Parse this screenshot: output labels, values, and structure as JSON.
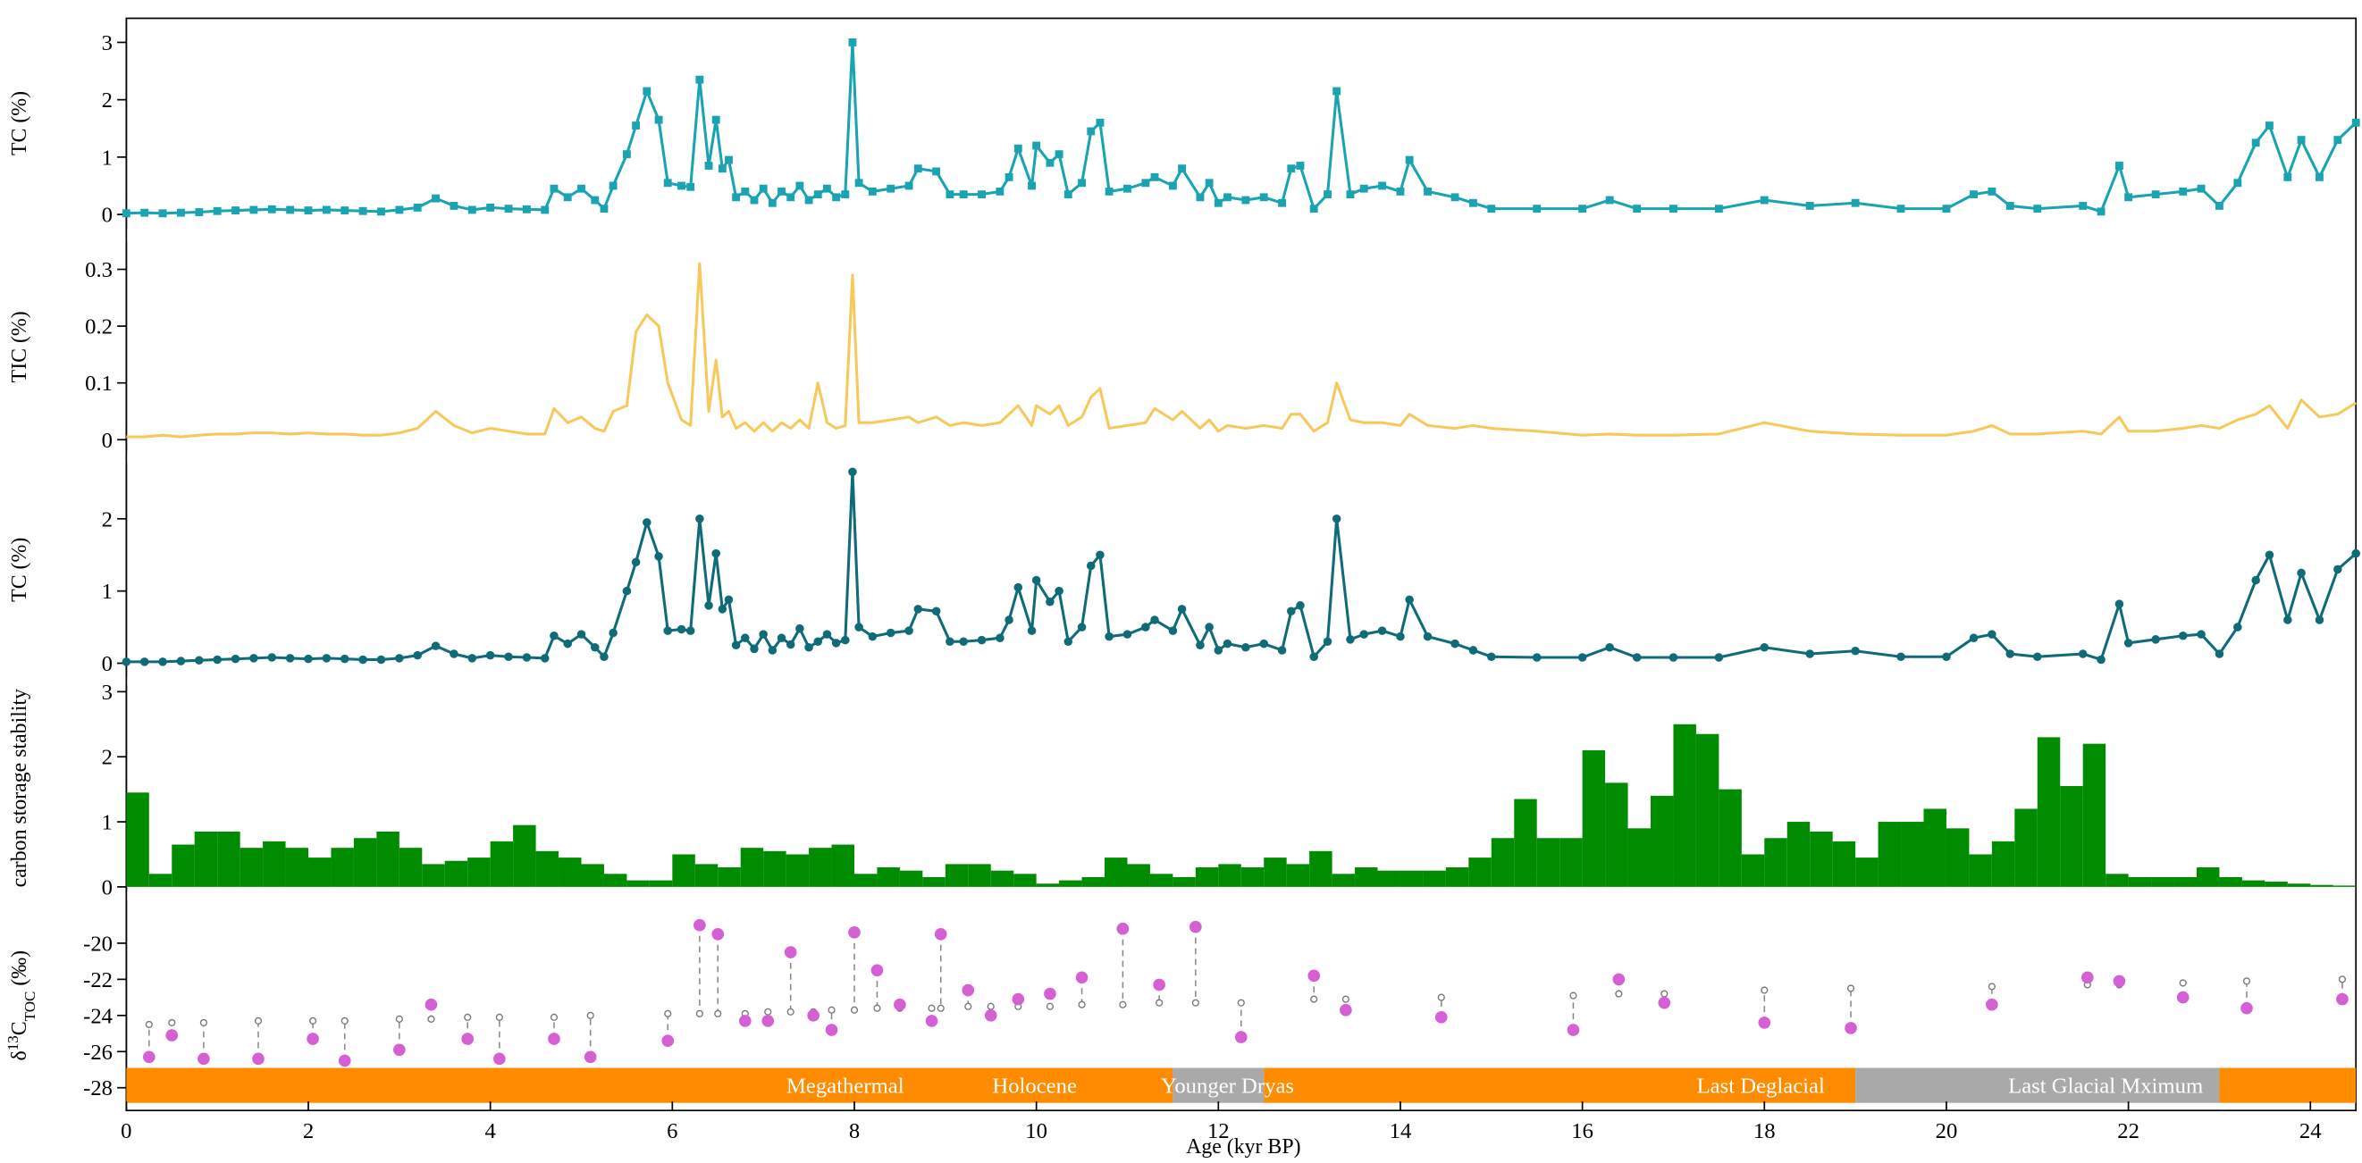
{
  "chart_data": [
    {
      "type": "line",
      "ylabel": "TC (%)",
      "color": "#1aa3b3",
      "marker": "square",
      "ylim": [
        -0.24,
        3.42
      ],
      "yticks": [
        0,
        1,
        2,
        3
      ],
      "x": [
        0,
        0.2,
        0.4,
        0.6,
        0.8,
        1.0,
        1.2,
        1.4,
        1.6,
        1.8,
        2.0,
        2.2,
        2.4,
        2.6,
        2.8,
        3.0,
        3.2,
        3.4,
        3.6,
        3.8,
        4.0,
        4.2,
        4.4,
        4.6,
        4.7,
        4.85,
        5.0,
        5.15,
        5.25,
        5.35,
        5.5,
        5.6,
        5.72,
        5.85,
        5.95,
        6.1,
        6.2,
        6.3,
        6.4,
        6.48,
        6.55,
        6.62,
        6.7,
        6.8,
        6.9,
        7.0,
        7.1,
        7.2,
        7.3,
        7.4,
        7.5,
        7.6,
        7.7,
        7.8,
        7.9,
        7.98,
        8.05,
        8.2,
        8.4,
        8.6,
        8.7,
        8.9,
        9.05,
        9.2,
        9.4,
        9.6,
        9.7,
        9.8,
        9.95,
        10.0,
        10.15,
        10.25,
        10.35,
        10.5,
        10.6,
        10.7,
        10.8,
        11.0,
        11.2,
        11.3,
        11.5,
        11.6,
        11.8,
        11.9,
        12.0,
        12.1,
        12.3,
        12.5,
        12.7,
        12.8,
        12.9,
        13.05,
        13.2,
        13.3,
        13.45,
        13.6,
        13.8,
        14.0,
        14.1,
        14.3,
        14.6,
        14.8,
        15.0,
        15.5,
        16.0,
        16.3,
        16.6,
        17.0,
        17.5,
        18.0,
        18.5,
        19.0,
        19.5,
        20.0,
        20.3,
        20.5,
        20.7,
        21.0,
        21.5,
        21.7,
        21.9,
        22.0,
        22.3,
        22.6,
        22.8,
        23.0,
        23.2,
        23.4,
        23.55,
        23.75,
        23.9,
        24.1,
        24.3,
        24.5
      ],
      "values": [
        0.02,
        0.03,
        0.02,
        0.03,
        0.04,
        0.06,
        0.07,
        0.08,
        0.09,
        0.08,
        0.07,
        0.08,
        0.07,
        0.06,
        0.05,
        0.08,
        0.12,
        0.28,
        0.15,
        0.08,
        0.12,
        0.1,
        0.09,
        0.08,
        0.45,
        0.3,
        0.45,
        0.25,
        0.1,
        0.5,
        1.05,
        1.55,
        2.15,
        1.65,
        0.55,
        0.5,
        0.48,
        2.35,
        0.85,
        1.65,
        0.8,
        0.95,
        0.3,
        0.4,
        0.25,
        0.45,
        0.2,
        0.4,
        0.3,
        0.5,
        0.25,
        0.35,
        0.45,
        0.3,
        0.35,
        3.0,
        0.55,
        0.4,
        0.45,
        0.5,
        0.8,
        0.75,
        0.35,
        0.35,
        0.35,
        0.4,
        0.65,
        1.15,
        0.5,
        1.2,
        0.9,
        1.05,
        0.35,
        0.55,
        1.45,
        1.6,
        0.4,
        0.45,
        0.55,
        0.65,
        0.5,
        0.8,
        0.3,
        0.55,
        0.2,
        0.3,
        0.25,
        0.3,
        0.2,
        0.8,
        0.85,
        0.1,
        0.35,
        2.15,
        0.35,
        0.45,
        0.5,
        0.4,
        0.95,
        0.4,
        0.3,
        0.2,
        0.1,
        0.1,
        0.1,
        0.25,
        0.1,
        0.1,
        0.1,
        0.25,
        0.15,
        0.2,
        0.1,
        0.1,
        0.35,
        0.4,
        0.15,
        0.1,
        0.15,
        0.05,
        0.85,
        0.3,
        0.35,
        0.4,
        0.45,
        0.15,
        0.55,
        1.25,
        1.55,
        0.65,
        1.3,
        0.65,
        1.3,
        1.6
      ]
    },
    {
      "type": "line",
      "ylabel": "TIC (%)",
      "color": "#f7c95c",
      "ylim": [
        -0.024,
        0.351
      ],
      "yticks": [
        0,
        0.1,
        0.2,
        0.3
      ],
      "x": [
        0,
        0.2,
        0.4,
        0.6,
        0.8,
        1.0,
        1.2,
        1.4,
        1.6,
        1.8,
        2.0,
        2.2,
        2.4,
        2.6,
        2.8,
        3.0,
        3.2,
        3.4,
        3.6,
        3.8,
        4.0,
        4.2,
        4.4,
        4.6,
        4.7,
        4.85,
        5.0,
        5.15,
        5.25,
        5.35,
        5.5,
        5.6,
        5.72,
        5.85,
        5.95,
        6.1,
        6.2,
        6.3,
        6.4,
        6.48,
        6.55,
        6.62,
        6.7,
        6.8,
        6.9,
        7.0,
        7.1,
        7.2,
        7.3,
        7.4,
        7.5,
        7.6,
        7.7,
        7.8,
        7.9,
        7.98,
        8.05,
        8.2,
        8.4,
        8.6,
        8.7,
        8.9,
        9.05,
        9.2,
        9.4,
        9.6,
        9.7,
        9.8,
        9.95,
        10.0,
        10.15,
        10.25,
        10.35,
        10.5,
        10.6,
        10.7,
        10.8,
        11.0,
        11.2,
        11.3,
        11.5,
        11.6,
        11.8,
        11.9,
        12.0,
        12.1,
        12.3,
        12.5,
        12.7,
        12.8,
        12.9,
        13.05,
        13.2,
        13.3,
        13.45,
        13.6,
        13.8,
        14.0,
        14.1,
        14.3,
        14.6,
        14.8,
        15.0,
        15.5,
        16.0,
        16.3,
        16.6,
        17.0,
        17.5,
        18.0,
        18.5,
        19.0,
        19.5,
        20.0,
        20.3,
        20.5,
        20.7,
        21.0,
        21.5,
        21.7,
        21.9,
        22.0,
        22.3,
        22.6,
        22.8,
        23.0,
        23.2,
        23.4,
        23.55,
        23.75,
        23.9,
        24.1,
        24.3,
        24.5
      ],
      "values": [
        0.005,
        0.005,
        0.008,
        0.005,
        0.008,
        0.01,
        0.01,
        0.012,
        0.012,
        0.01,
        0.012,
        0.01,
        0.01,
        0.008,
        0.008,
        0.012,
        0.02,
        0.05,
        0.025,
        0.012,
        0.02,
        0.015,
        0.01,
        0.01,
        0.055,
        0.03,
        0.04,
        0.02,
        0.015,
        0.05,
        0.06,
        0.19,
        0.22,
        0.2,
        0.1,
        0.035,
        0.025,
        0.31,
        0.05,
        0.14,
        0.04,
        0.05,
        0.02,
        0.03,
        0.015,
        0.03,
        0.015,
        0.03,
        0.02,
        0.035,
        0.02,
        0.1,
        0.03,
        0.02,
        0.025,
        0.29,
        0.03,
        0.03,
        0.035,
        0.04,
        0.03,
        0.04,
        0.025,
        0.03,
        0.025,
        0.03,
        0.045,
        0.06,
        0.025,
        0.06,
        0.045,
        0.06,
        0.025,
        0.04,
        0.075,
        0.09,
        0.02,
        0.025,
        0.03,
        0.055,
        0.035,
        0.05,
        0.02,
        0.035,
        0.015,
        0.025,
        0.02,
        0.025,
        0.02,
        0.045,
        0.045,
        0.015,
        0.03,
        0.1,
        0.035,
        0.03,
        0.03,
        0.025,
        0.045,
        0.025,
        0.02,
        0.025,
        0.02,
        0.015,
        0.008,
        0.01,
        0.008,
        0.008,
        0.01,
        0.03,
        0.015,
        0.01,
        0.008,
        0.008,
        0.015,
        0.025,
        0.01,
        0.01,
        0.015,
        0.01,
        0.04,
        0.015,
        0.015,
        0.02,
        0.025,
        0.02,
        0.035,
        0.045,
        0.06,
        0.02,
        0.07,
        0.04,
        0.045,
        0.065
      ]
    },
    {
      "type": "line",
      "ylabel": "TC (%)",
      "color": "#0e6b77",
      "marker": "circle",
      "ylim": [
        -0.19,
        2.78
      ],
      "yticks": [
        0,
        1,
        2
      ],
      "x": [
        0,
        0.2,
        0.4,
        0.6,
        0.8,
        1.0,
        1.2,
        1.4,
        1.6,
        1.8,
        2.0,
        2.2,
        2.4,
        2.6,
        2.8,
        3.0,
        3.2,
        3.4,
        3.6,
        3.8,
        4.0,
        4.2,
        4.4,
        4.6,
        4.7,
        4.85,
        5.0,
        5.15,
        5.25,
        5.35,
        5.5,
        5.6,
        5.72,
        5.85,
        5.95,
        6.1,
        6.2,
        6.3,
        6.4,
        6.48,
        6.55,
        6.62,
        6.7,
        6.8,
        6.9,
        7.0,
        7.1,
        7.2,
        7.3,
        7.4,
        7.5,
        7.6,
        7.7,
        7.8,
        7.9,
        7.98,
        8.05,
        8.2,
        8.4,
        8.6,
        8.7,
        8.9,
        9.05,
        9.2,
        9.4,
        9.6,
        9.7,
        9.8,
        9.95,
        10.0,
        10.15,
        10.25,
        10.35,
        10.5,
        10.6,
        10.7,
        10.8,
        11.0,
        11.2,
        11.3,
        11.5,
        11.6,
        11.8,
        11.9,
        12.0,
        12.1,
        12.3,
        12.5,
        12.7,
        12.8,
        12.9,
        13.05,
        13.2,
        13.3,
        13.45,
        13.6,
        13.8,
        14.0,
        14.1,
        14.3,
        14.6,
        14.8,
        15.0,
        15.5,
        16.0,
        16.3,
        16.6,
        17.0,
        17.5,
        18.0,
        18.5,
        19.0,
        19.5,
        20.0,
        20.3,
        20.5,
        20.7,
        21.0,
        21.5,
        21.7,
        21.9,
        22.0,
        22.3,
        22.6,
        22.8,
        23.0,
        23.2,
        23.4,
        23.55,
        23.75,
        23.9,
        24.1,
        24.3,
        24.5
      ],
      "values": [
        0.02,
        0.02,
        0.02,
        0.03,
        0.04,
        0.05,
        0.06,
        0.07,
        0.08,
        0.07,
        0.06,
        0.07,
        0.06,
        0.05,
        0.05,
        0.07,
        0.11,
        0.24,
        0.13,
        0.07,
        0.11,
        0.09,
        0.08,
        0.07,
        0.38,
        0.27,
        0.4,
        0.22,
        0.09,
        0.42,
        1.0,
        1.4,
        1.95,
        1.48,
        0.45,
        0.47,
        0.45,
        2.0,
        0.8,
        1.52,
        0.75,
        0.88,
        0.25,
        0.35,
        0.2,
        0.4,
        0.18,
        0.35,
        0.26,
        0.48,
        0.22,
        0.3,
        0.4,
        0.28,
        0.32,
        2.65,
        0.5,
        0.37,
        0.42,
        0.45,
        0.75,
        0.72,
        0.3,
        0.3,
        0.32,
        0.35,
        0.6,
        1.05,
        0.45,
        1.15,
        0.85,
        1.0,
        0.3,
        0.5,
        1.35,
        1.5,
        0.37,
        0.4,
        0.5,
        0.6,
        0.45,
        0.75,
        0.25,
        0.5,
        0.18,
        0.27,
        0.22,
        0.27,
        0.18,
        0.72,
        0.8,
        0.09,
        0.3,
        2.0,
        0.33,
        0.4,
        0.45,
        0.37,
        0.88,
        0.37,
        0.27,
        0.18,
        0.09,
        0.08,
        0.08,
        0.22,
        0.08,
        0.08,
        0.08,
        0.22,
        0.13,
        0.17,
        0.09,
        0.09,
        0.35,
        0.4,
        0.13,
        0.09,
        0.13,
        0.05,
        0.82,
        0.28,
        0.33,
        0.38,
        0.4,
        0.13,
        0.5,
        1.15,
        1.5,
        0.6,
        1.25,
        0.6,
        1.3,
        1.52
      ]
    },
    {
      "type": "histogram",
      "ylabel": "carbon storage stability",
      "color": "#008c00",
      "ylim": [
        -0.07,
        3.11
      ],
      "yticks": [
        0,
        1,
        2,
        3
      ],
      "bins": [
        0,
        0.25,
        0.5,
        0.75,
        1,
        1.25,
        1.5,
        1.75,
        2,
        2.25,
        2.5,
        2.75,
        3,
        3.25,
        3.5,
        3.75,
        4,
        4.25,
        4.5,
        4.75,
        5,
        5.25,
        5.5,
        5.75,
        6,
        6.25,
        6.5,
        6.75,
        7,
        7.25,
        7.5,
        7.75,
        8,
        8.25,
        8.5,
        8.75,
        9,
        9.25,
        9.5,
        9.75,
        10,
        10.25,
        10.5,
        10.75,
        11,
        11.25,
        11.5,
        11.75,
        12,
        12.25,
        12.5,
        12.75,
        13,
        13.25,
        13.5,
        13.75,
        14,
        14.25,
        14.5,
        14.75,
        15,
        15.25,
        15.5,
        15.75,
        16,
        16.25,
        16.5,
        16.75,
        17,
        17.25,
        17.5,
        17.75,
        18,
        18.25,
        18.5,
        18.75,
        19,
        19.25,
        19.5,
        19.75,
        20,
        20.25,
        20.5,
        20.75,
        21,
        21.25,
        21.5,
        21.75,
        22,
        22.25,
        22.5,
        22.75,
        23,
        23.25,
        23.5,
        23.75,
        24,
        24.25,
        24.5
      ],
      "counts": [
        1.45,
        0.2,
        0.65,
        0.85,
        0.85,
        0.6,
        0.7,
        0.6,
        0.45,
        0.6,
        0.75,
        0.85,
        0.6,
        0.35,
        0.4,
        0.45,
        0.7,
        0.95,
        0.55,
        0.45,
        0.35,
        0.2,
        0.1,
        0.1,
        0.5,
        0.35,
        0.3,
        0.6,
        0.55,
        0.5,
        0.6,
        0.65,
        0.2,
        0.3,
        0.25,
        0.15,
        0.35,
        0.35,
        0.25,
        0.2,
        0.05,
        0.1,
        0.15,
        0.45,
        0.35,
        0.2,
        0.15,
        0.3,
        0.35,
        0.3,
        0.45,
        0.35,
        0.55,
        0.2,
        0.3,
        0.25,
        0.25,
        0.25,
        0.3,
        0.45,
        0.75,
        1.35,
        0.75,
        0.75,
        2.1,
        1.6,
        0.9,
        1.4,
        2.5,
        2.35,
        1.5,
        0.5,
        0.75,
        1.0,
        0.85,
        0.7,
        0.45,
        1.0,
        1.0,
        1.2,
        0.9,
        0.5,
        0.7,
        1.2,
        2.3,
        1.55,
        2.2,
        0.2,
        0.15,
        0.15,
        0.15,
        0.3,
        0.15,
        0.1,
        0.08,
        0.05,
        0.03,
        0.02
      ]
    },
    {
      "type": "scatter",
      "ylabel": {
        "pre": "δ",
        "sup": "13",
        "main": "C",
        "sub": "TOC",
        "post": " (‰)"
      },
      "xlabel": "Age (kyr BP)",
      "xlim": [
        0,
        24.5
      ],
      "xticks": [
        0,
        2,
        4,
        6,
        8,
        10,
        12,
        14,
        16,
        18,
        20,
        22,
        24
      ],
      "ylim": [
        -29.26,
        -17.64
      ],
      "yticks": [
        -28,
        -26,
        -24,
        -22,
        -20
      ],
      "x": [
        0.25,
        0.5,
        0.85,
        1.45,
        2.05,
        2.4,
        3.0,
        3.35,
        3.75,
        4.1,
        4.7,
        5.1,
        5.95,
        6.3,
        6.5,
        6.8,
        7.05,
        7.3,
        7.55,
        7.75,
        8.0,
        8.25,
        8.5,
        8.85,
        8.95,
        9.25,
        9.5,
        9.8,
        10.15,
        10.5,
        10.95,
        11.35,
        11.75,
        12.25,
        13.05,
        13.4,
        14.45,
        15.9,
        16.4,
        16.9,
        18.0,
        18.95,
        20.5,
        21.55,
        21.9,
        22.6,
        23.3,
        24.35
      ],
      "series": [
        {
          "color": "#d65fd6",
          "values": [
            -26.3,
            -25.1,
            -26.4,
            -26.4,
            -25.3,
            -26.5,
            -25.9,
            -23.4,
            -25.3,
            -26.4,
            -25.3,
            -26.3,
            -25.4,
            -19.0,
            -19.5,
            -24.3,
            -24.3,
            -20.5,
            -24.0,
            -24.8,
            -19.4,
            -21.5,
            -23.4,
            -24.3,
            -19.5,
            -22.6,
            -24.0,
            -23.1,
            -22.8,
            -21.9,
            -19.2,
            -22.3,
            -19.1,
            -25.2,
            -21.8,
            -23.7,
            -24.1,
            -24.8,
            -22.0,
            -23.3,
            -24.4,
            -24.7,
            -23.4,
            -21.9,
            -22.1,
            -23.0,
            -23.6,
            -23.1
          ]
        },
        {
          "color": "#777777",
          "values": [
            -24.5,
            -24.4,
            -24.4,
            -24.3,
            -24.3,
            -24.3,
            -24.2,
            -24.2,
            -24.1,
            -24.1,
            -24.1,
            -24.0,
            -23.9,
            -23.9,
            -23.9,
            -23.9,
            -23.8,
            -23.8,
            -23.8,
            -23.7,
            -23.7,
            -23.6,
            -23.6,
            -23.6,
            -23.6,
            -23.5,
            -23.5,
            -23.5,
            -23.5,
            -23.4,
            -23.4,
            -23.3,
            -23.3,
            -23.3,
            -23.1,
            -23.1,
            -23.0,
            -22.9,
            -22.8,
            -22.8,
            -22.6,
            -22.5,
            -22.4,
            -22.3,
            -22.3,
            -22.2,
            -22.1,
            -22.0
          ]
        }
      ],
      "periods": [
        {
          "start": 0,
          "end": 11.5,
          "color": "#ff8c00"
        },
        {
          "start": 11.5,
          "end": 12.5,
          "color": "#a9a9a9"
        },
        {
          "start": 12.5,
          "end": 19.0,
          "color": "#ff8c00"
        },
        {
          "start": 19.0,
          "end": 23.0,
          "color": "#a9a9a9"
        },
        {
          "start": 23.0,
          "end": 24.5,
          "color": "#ff8c00"
        }
      ],
      "period_labels": [
        {
          "text": "Megathermal",
          "x": 7.9
        },
        {
          "text": "Holocene",
          "x": 9.98
        },
        {
          "text": "Younger Dryas",
          "x": 12.1
        },
        {
          "text": "Last Deglacial",
          "x": 17.96
        },
        {
          "text": "Last Glacial Mximum",
          "x": 21.75
        }
      ]
    }
  ]
}
